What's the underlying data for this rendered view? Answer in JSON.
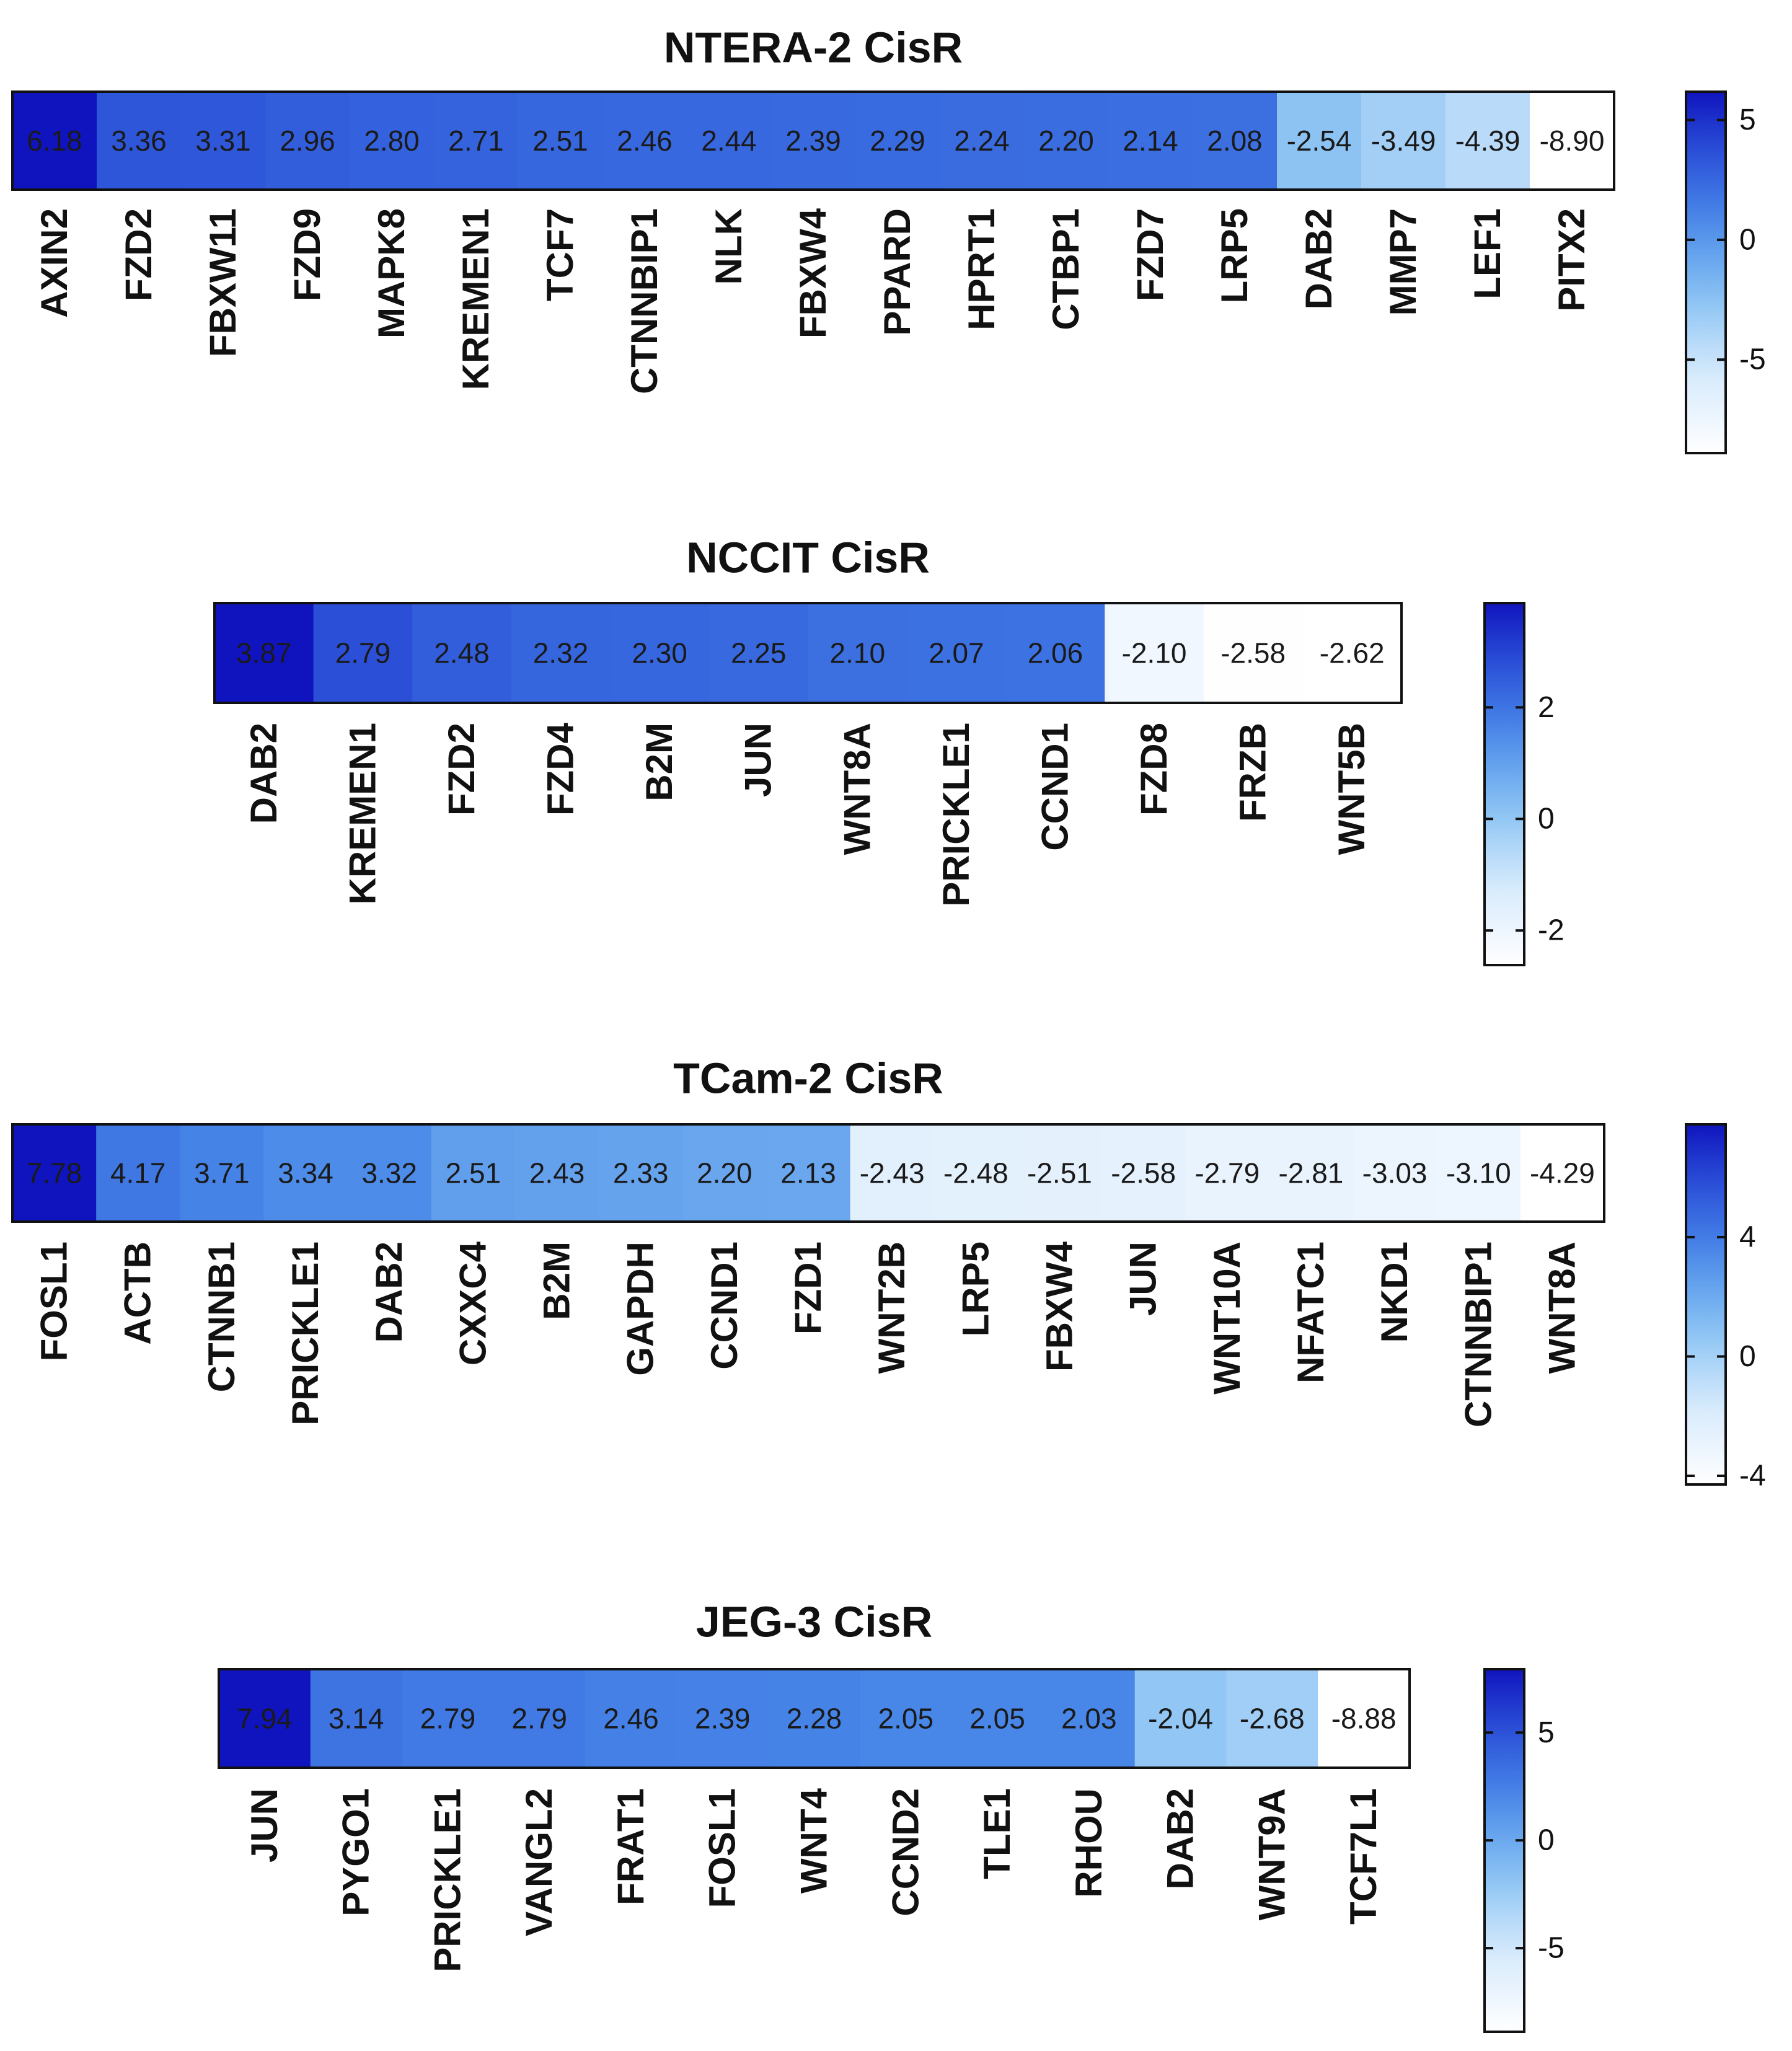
{
  "chart_data": [
    {
      "type": "heatmap",
      "title": "NTERA-2 CisR",
      "genes": [
        "AXIN2",
        "FZD2",
        "FBXW11",
        "FZD9",
        "MAPK8",
        "KREMEN1",
        "TCF7",
        "CTNNBIP1",
        "NLK",
        "FBXW4",
        "PPARD",
        "HPRT1",
        "CTBP1",
        "FZD7",
        "LRP5",
        "DAB2",
        "MMP7",
        "LEF1",
        "PITX2"
      ],
      "labels": [
        "6.18",
        "3.36",
        "3.31",
        "2.96",
        "2.80",
        "2.71",
        "2.51",
        "2.46",
        "2.44",
        "2.39",
        "2.29",
        "2.24",
        "2.20",
        "2.14",
        "2.08",
        "-2.54",
        "-3.49",
        "-4.39",
        "-8.90"
      ],
      "values": [
        6.18,
        3.36,
        3.31,
        2.96,
        2.8,
        2.71,
        2.51,
        2.46,
        2.44,
        2.39,
        2.29,
        2.24,
        2.2,
        2.14,
        2.08,
        -2.54,
        -3.49,
        -4.39,
        -8.9
      ],
      "colorbar": {
        "min": -8.9,
        "max": 6.18,
        "ticks": [
          5,
          0,
          -5
        ],
        "tick_labels": [
          "5",
          "0",
          "-5"
        ]
      }
    },
    {
      "type": "heatmap",
      "title": "NCCIT CisR",
      "genes": [
        "DAB2",
        "KREMEN1",
        "FZD2",
        "FZD4",
        "B2M",
        "JUN",
        "WNT8A",
        "PRICKLE1",
        "CCND1",
        "FZD8",
        "FRZB",
        "WNT5B"
      ],
      "labels": [
        "3.87",
        "2.79",
        "2.48",
        "2.32",
        "2.30",
        "2.25",
        "2.10",
        "2.07",
        "2.06",
        "-2.10",
        "-2.58",
        "-2.62"
      ],
      "values": [
        3.87,
        2.79,
        2.48,
        2.32,
        2.3,
        2.25,
        2.1,
        2.07,
        2.06,
        -2.1,
        -2.58,
        -2.62
      ],
      "colorbar": {
        "min": -2.62,
        "max": 3.87,
        "ticks": [
          2,
          0,
          -2
        ],
        "tick_labels": [
          "2",
          "0",
          "-2"
        ]
      }
    },
    {
      "type": "heatmap",
      "title": "TCam-2 CisR",
      "genes": [
        "FOSL1",
        "ACTB",
        "CTNNB1",
        "PRICKLE1",
        "DAB2",
        "CXXC4",
        "B2M",
        "GAPDH",
        "CCND1",
        "FZD1",
        "WNT2B",
        "LRP5",
        "FBXW4",
        "JUN",
        "WNT10A",
        "NFATC1",
        "NKD1",
        "CTNNBIP1",
        "WNT8A"
      ],
      "labels": [
        "7.78",
        "4.17",
        "3.71",
        "3.34",
        "3.32",
        "2.51",
        "2.43",
        "2.33",
        "2.20",
        "2.13",
        "-2.43",
        "-2.48",
        "-2.51",
        "-2.58",
        "-2.79",
        "-2.81",
        "-3.03",
        "-3.10",
        "-4.29"
      ],
      "values": [
        7.78,
        4.17,
        3.71,
        3.34,
        3.32,
        2.51,
        2.43,
        2.33,
        2.2,
        2.13,
        -2.43,
        -2.48,
        -2.51,
        -2.58,
        -2.79,
        -2.81,
        -3.03,
        -3.1,
        -4.29
      ],
      "colorbar": {
        "min": -4.29,
        "max": 7.78,
        "ticks": [
          4,
          0,
          -4
        ],
        "tick_labels": [
          "4",
          "0",
          "-4"
        ]
      }
    },
    {
      "type": "heatmap",
      "title": "JEG-3 CisR",
      "genes": [
        "JUN",
        "PYGO1",
        "PRICKLE1",
        "VANGL2",
        "FRAT1",
        "FOSL1",
        "WNT4",
        "CCND2",
        "TLE1",
        "RHOU",
        "DAB2",
        "WNT9A",
        "TCF7L1"
      ],
      "labels": [
        "7.94",
        "3.14",
        "2.79",
        "2.79",
        "2.46",
        "2.39",
        "2.28",
        "2.05",
        "2.05",
        "2.03",
        "-2.04",
        "-2.68",
        "-8.88"
      ],
      "values": [
        7.94,
        3.14,
        2.79,
        2.79,
        2.46,
        2.39,
        2.28,
        2.05,
        2.05,
        2.03,
        -2.04,
        -2.68,
        -8.88
      ],
      "colorbar": {
        "min": -8.88,
        "max": 7.94,
        "ticks": [
          5,
          0,
          -5
        ],
        "tick_labels": [
          "5",
          "0",
          "-5"
        ]
      }
    }
  ]
}
